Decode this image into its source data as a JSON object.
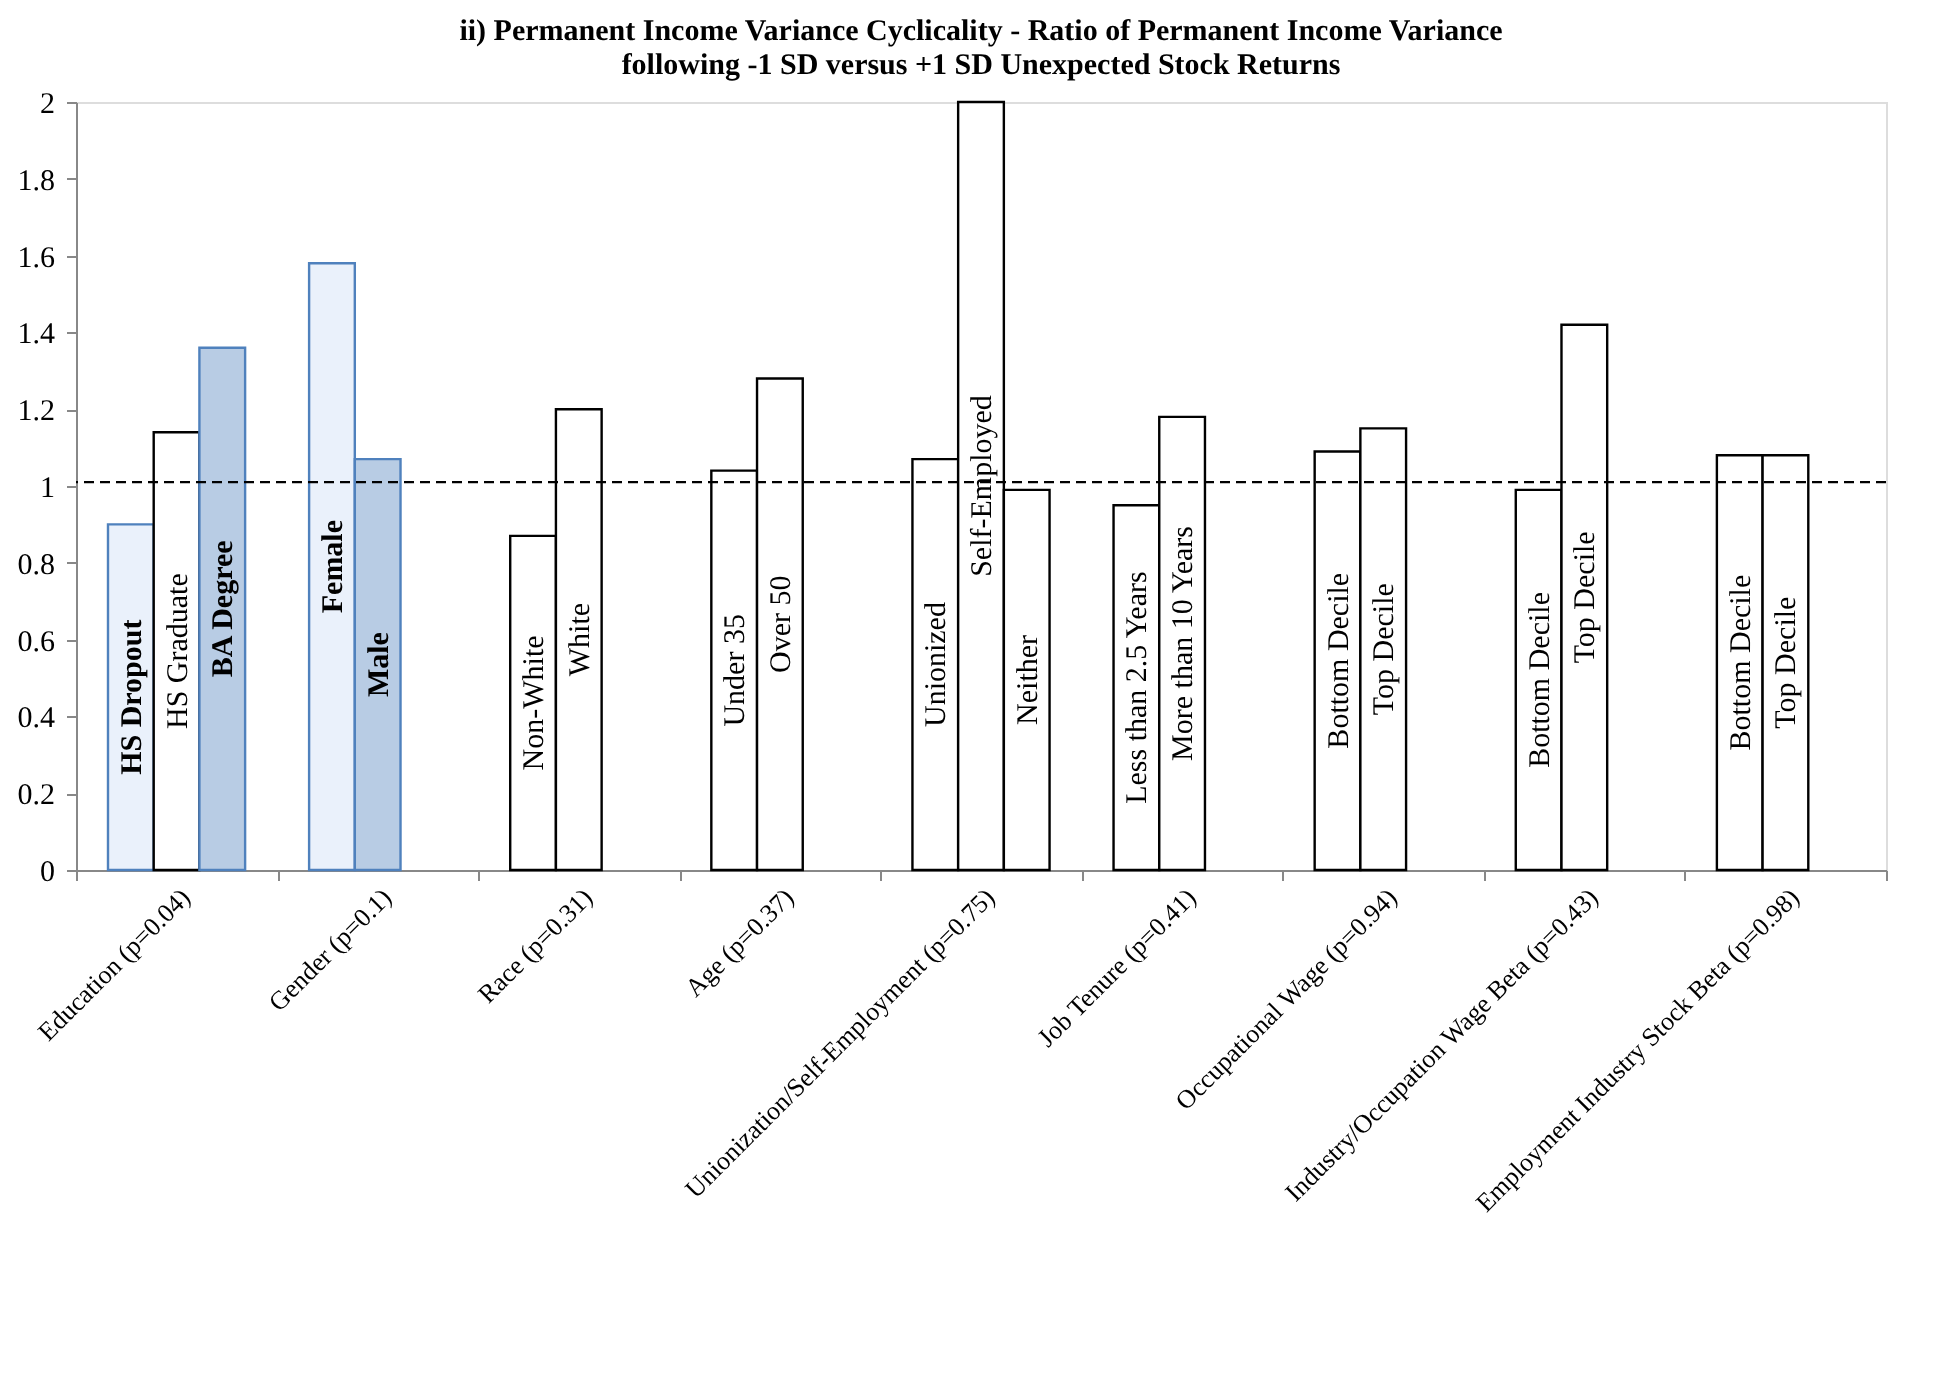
{
  "chart_data": {
    "type": "bar",
    "title": "ii) Permanent Income Variance Cyclicality - Ratio of Permanent Income Variance\nfollowing -1 SD versus +1 SD Unexpected Stock Returns",
    "categories": [
      "Education (p=0.04)",
      "Gender (p=0.1)",
      "Race (p=0.31)",
      "Age (p=0.37)",
      "Unionization/Self-Employment (p=0.75)",
      "Job Tenure (p=0.41)",
      "Occupational Wage (p=0.94)",
      "Industry/Occupation Wage Beta (p=0.43)",
      "Employment Industry Stock Beta (p=0.98)"
    ],
    "series": [
      {
        "colors": [
          "#eaf1fb",
          "#eaf1fb",
          "#ffffff",
          "#ffffff",
          "#ffffff",
          "#ffffff",
          "#ffffff",
          "#ffffff",
          "#ffffff"
        ],
        "values": [
          0.9,
          1.58,
          0.87,
          1.04,
          1.07,
          0.95,
          1.09,
          0.99,
          1.08
        ],
        "value_labels": [
          "HS Dropout",
          "Female",
          "Non-White",
          "Under 35",
          "Unionized",
          "Less than 2.5 Years",
          "Bottom Decile",
          "Bottom Decile",
          "Bottom Decile"
        ]
      },
      {
        "colors": [
          "#ffffff",
          "#b8cce4",
          "#ffffff",
          "#ffffff",
          "#ffffff",
          "#ffffff",
          "#ffffff",
          "#ffffff",
          "#ffffff"
        ],
        "values": [
          1.14,
          1.07,
          1.2,
          1.28,
          2.0,
          1.18,
          1.15,
          1.42,
          1.08
        ],
        "value_labels": [
          "HS Graduate",
          "Male",
          "White",
          "Over 50",
          "Self-Employed",
          "More than 10 Years",
          "Top Decile",
          "Top Decile",
          "Top Decile"
        ]
      },
      {
        "colors": [
          "#b8cce4",
          null,
          null,
          null,
          "#ffffff",
          null,
          null,
          null,
          null
        ],
        "values": [
          1.36,
          null,
          null,
          null,
          0.99,
          null,
          null,
          null,
          null
        ],
        "value_labels": [
          "BA Degree",
          null,
          null,
          null,
          "Neither",
          null,
          null,
          null,
          null
        ]
      }
    ],
    "ylim": [
      0,
      2
    ],
    "yticks": [
      0,
      0.2,
      0.4,
      0.6,
      0.8,
      1,
      1.2,
      1.4,
      1.6,
      1.8,
      2
    ],
    "ref_lines": [
      {
        "axis": "y",
        "value": 1.01,
        "line_style": "dashed",
        "color": "#000000"
      }
    ],
    "grid": false
  }
}
